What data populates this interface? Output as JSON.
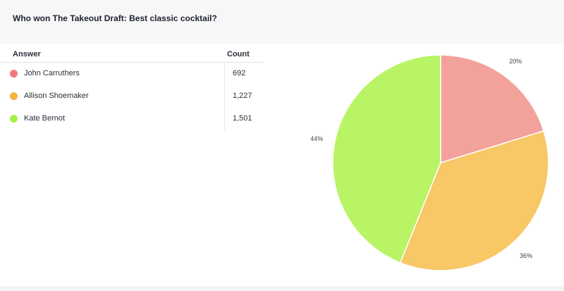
{
  "title": "Who won The Takeout Draft: Best classic cocktail?",
  "table": {
    "col_answer": "Answer",
    "col_count": "Count"
  },
  "chart_data": {
    "type": "pie",
    "categories": [
      "John Carruthers",
      "Allison Shoemaker",
      "Kate Bernot"
    ],
    "values": [
      692,
      1227,
      1501
    ],
    "display_counts": [
      "692",
      "1,227",
      "1,501"
    ],
    "percent_labels": [
      "20%",
      "36%",
      "44%"
    ],
    "colors": [
      "#f3a19b",
      "#f8c766",
      "#b8f465"
    ],
    "marker_colors": [
      "#ef7a78",
      "#f4b33c",
      "#a6ef45"
    ]
  }
}
